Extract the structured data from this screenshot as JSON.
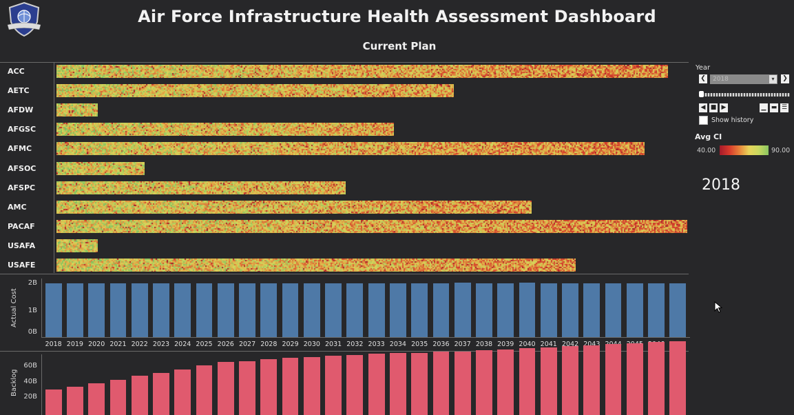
{
  "header": {
    "title": "Air Force Infrastructure Health Assessment Dashboard",
    "subtitle": "Current Plan"
  },
  "orgs": [
    {
      "label": "ACC",
      "relative_length": 0.969
    },
    {
      "label": "AETC",
      "relative_length": 0.63
    },
    {
      "label": "AFDW",
      "relative_length": 0.066
    },
    {
      "label": "AFGSC",
      "relative_length": 0.535
    },
    {
      "label": "AFMC",
      "relative_length": 0.932
    },
    {
      "label": "AFSOC",
      "relative_length": 0.14
    },
    {
      "label": "AFSPC",
      "relative_length": 0.459
    },
    {
      "label": "AMC",
      "relative_length": 0.753
    },
    {
      "label": "PACAF",
      "relative_length": 1.0
    },
    {
      "label": "USAFA",
      "relative_length": 0.066
    },
    {
      "label": "USAFE",
      "relative_length": 0.823
    }
  ],
  "chart_data": [
    {
      "type": "bar",
      "title": "",
      "xlabel": "",
      "ylabel": "Actual Cost",
      "y_ticks": [
        "2B",
        "1B",
        "0B"
      ],
      "ylim": [
        0,
        2.3
      ],
      "categories": [
        "2018",
        "2019",
        "2020",
        "2021",
        "2022",
        "2023",
        "2024",
        "2025",
        "2026",
        "2027",
        "2028",
        "2029",
        "2030",
        "2031",
        "2032",
        "2033",
        "2034",
        "2035",
        "2036",
        "2037",
        "2038",
        "2039",
        "2040",
        "2041",
        "2042",
        "2043",
        "2044",
        "2045",
        "2046",
        "2047"
      ],
      "values": [
        2.0,
        2.0,
        2.0,
        2.0,
        2.0,
        2.0,
        2.0,
        2.0,
        2.0,
        2.0,
        2.0,
        2.0,
        2.0,
        2.0,
        2.0,
        2.0,
        2.0,
        2.0,
        2.0,
        2.03,
        2.0,
        2.0,
        2.03,
        2.0,
        2.0,
        2.0,
        2.0,
        2.0,
        2.0,
        2.0
      ],
      "color": "#4e79a7"
    },
    {
      "type": "bar",
      "title": "",
      "xlabel": "",
      "ylabel": "Backlog",
      "y_ticks": [
        "60B",
        "40B",
        "20B"
      ],
      "ylim": [
        0,
        75
      ],
      "categories": [
        "2018",
        "2019",
        "2020",
        "2021",
        "2022",
        "2023",
        "2024",
        "2025",
        "2026",
        "2027",
        "2028",
        "2029",
        "2030",
        "2031",
        "2032",
        "2033",
        "2034",
        "2035",
        "2036",
        "2037",
        "2038",
        "2039",
        "2040",
        "2041",
        "2042",
        "2043",
        "2044",
        "2045",
        "2046",
        "2047"
      ],
      "values": [
        24,
        27,
        30,
        33,
        37,
        40,
        43,
        47,
        50,
        51,
        53,
        54,
        55,
        56,
        57,
        58,
        59,
        59,
        60,
        60,
        61,
        62,
        63,
        64,
        65,
        66,
        67,
        68,
        69,
        70
      ],
      "color": "#e05a6e"
    }
  ],
  "controls": {
    "year_label": "Year",
    "year_value": "2018",
    "show_history_label": "Show history",
    "legend_title": "Avg CI",
    "legend_min": "40.00",
    "legend_max": "90.00",
    "current_year_display": "2018"
  },
  "colors": {
    "background": "#272729",
    "cost_bar": "#4e79a7",
    "backlog_bar": "#e05a6e",
    "heat_low": "#a51a2a",
    "heat_high": "#8cc660"
  }
}
